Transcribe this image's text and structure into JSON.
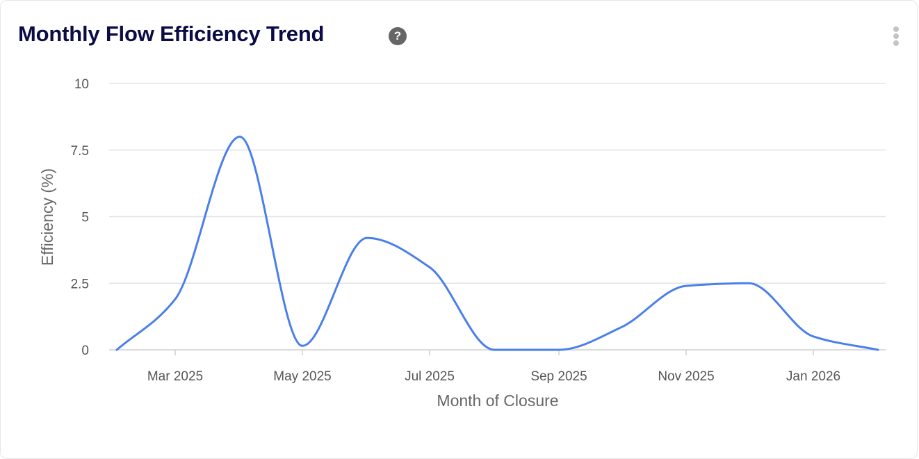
{
  "header": {
    "title": "Monthly Flow Efficiency Trend",
    "help_icon": "question-circle-icon",
    "menu_icon": "more-vertical-icon"
  },
  "chart_data": {
    "type": "line",
    "title": "Monthly Flow Efficiency Trend",
    "xlabel": "Month of Closure",
    "ylabel": "Efficiency (%)",
    "ylim": [
      0,
      10
    ],
    "yticks": [
      0,
      2.5,
      5,
      7.5,
      10
    ],
    "ytick_labels": [
      "0",
      "2.5",
      "5",
      "7.5",
      "10"
    ],
    "xticks": [
      "2025-03-01",
      "2025-05-01",
      "2025-07-01",
      "2025-09-01",
      "2025-11-01",
      "2026-01-01"
    ],
    "xtick_labels": [
      "Mar 2025",
      "May 2025",
      "Jul 2025",
      "Sep 2025",
      "Nov 2025",
      "Jan 2026"
    ],
    "xlim": [
      "2025-02-01",
      "2026-02-01"
    ],
    "grid": "horizontal",
    "line_color": "#4a7fea",
    "x": [
      "2025-02-01",
      "2025-03-01",
      "2025-04-01",
      "2025-05-01",
      "2025-06-01",
      "2025-07-01",
      "2025-08-01",
      "2025-09-01",
      "2025-10-01",
      "2025-11-01",
      "2025-12-01",
      "2026-01-01",
      "2026-02-01"
    ],
    "values": [
      0,
      1.9,
      8.0,
      0.15,
      4.2,
      3.1,
      0,
      0,
      0.85,
      2.4,
      2.5,
      0.5,
      0
    ]
  }
}
